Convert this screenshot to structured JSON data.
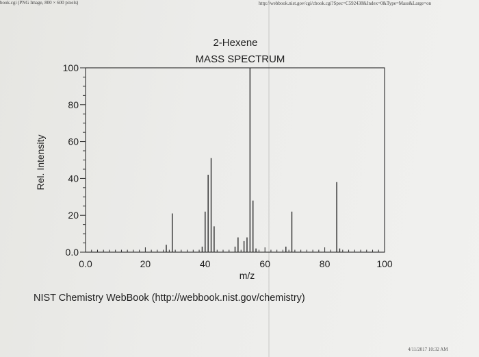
{
  "header": {
    "left": "book.cgi (PNG Image, 800 × 600 pixels)",
    "url": "http://webbook.nist.gov/cgi/cbook.cgi?Spec=C592438&Index=0&Type=Mass&Large=on"
  },
  "footer": {
    "credit": "NIST Chemistry WebBook (http://webbook.nist.gov/chemistry)",
    "date": "4/11/2017 10:32 AM"
  },
  "chart_data": {
    "type": "bar",
    "title": "2-Hexene",
    "subtitle": "MASS SPECTRUM",
    "xlabel": "m/z",
    "ylabel": "Rel. Intensity",
    "xlim": [
      0,
      100
    ],
    "ylim": [
      0,
      100
    ],
    "xticks": [
      "0.0",
      "20",
      "40",
      "60",
      "80",
      "100"
    ],
    "yticks": [
      "0.0",
      "20",
      "40",
      "60",
      "80",
      "100"
    ],
    "x": [
      27,
      29,
      39,
      40,
      41,
      42,
      43,
      50,
      51,
      53,
      54,
      55,
      56,
      57,
      67,
      69,
      84,
      85
    ],
    "values": [
      4,
      21,
      3,
      22,
      42,
      51,
      14,
      3,
      8,
      6,
      8,
      100,
      28,
      2,
      3,
      22,
      38,
      2
    ]
  }
}
